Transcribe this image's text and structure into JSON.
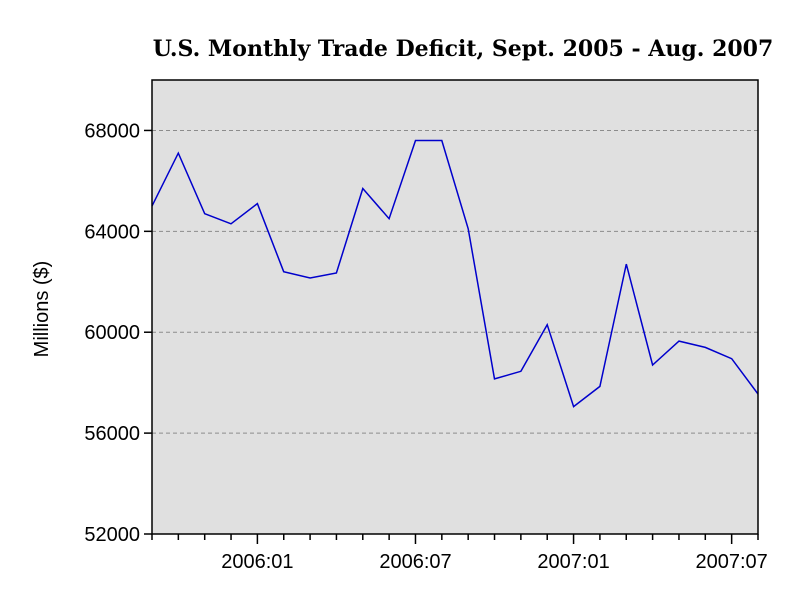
{
  "chart_data": {
    "type": "line",
    "title": "U.S. Monthly Trade Deficit, Sept. 2005 - Aug. 2007",
    "xlabel": "",
    "ylabel": "Millions ($)",
    "ylim": [
      52000,
      70000
    ],
    "y_ticks": [
      52000,
      56000,
      60000,
      64000,
      68000
    ],
    "y_tick_labels": [
      "52000",
      "56000",
      "60000",
      "64000",
      "68000"
    ],
    "x_tick_labels": [
      {
        "index": 4,
        "label": "2006:01"
      },
      {
        "index": 10,
        "label": "2006:07"
      },
      {
        "index": 16,
        "label": "2007:01"
      },
      {
        "index": 22,
        "label": "2007:07"
      }
    ],
    "grid": "horizontal dashed",
    "line_color": "#0000cc",
    "plot_background": "#e0e0e0",
    "x": [
      "2005:09",
      "2005:10",
      "2005:11",
      "2005:12",
      "2006:01",
      "2006:02",
      "2006:03",
      "2006:04",
      "2006:05",
      "2006:06",
      "2006:07",
      "2006:08",
      "2006:09",
      "2006:10",
      "2006:11",
      "2006:12",
      "2007:01",
      "2007:02",
      "2007:03",
      "2007:04",
      "2007:05",
      "2007:06",
      "2007:07",
      "2007:08"
    ],
    "series": [
      {
        "values": [
          65000,
          67100,
          64700,
          64300,
          65100,
          62400,
          62150,
          62350,
          65700,
          64500,
          67600,
          67600,
          64100,
          58150,
          58450,
          60300,
          57050,
          57850,
          62700,
          58700,
          59650,
          59400,
          58950,
          57550
        ]
      }
    ]
  }
}
